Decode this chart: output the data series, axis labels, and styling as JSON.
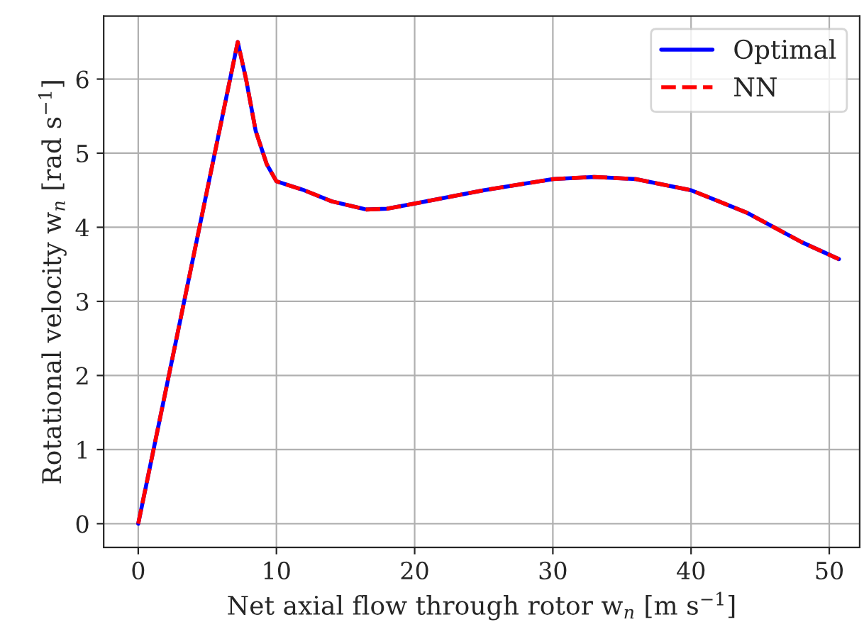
{
  "chart_data": {
    "type": "line",
    "xlabel": "Net axial flow through rotor w$_{n}$ [m s$^{−1}$]",
    "ylabel": "Rotational velocity w$_{n}$ [rad s$^{−1}$]",
    "x": [
      0,
      7.2,
      7.8,
      8.5,
      9.3,
      10,
      12,
      14,
      16.5,
      18,
      20,
      25,
      30,
      33,
      36,
      40,
      44,
      48,
      50.7
    ],
    "series": [
      {
        "name": "Optimal",
        "color": "#0000ff",
        "line_style": "solid",
        "values": [
          0,
          6.5,
          6.0,
          5.3,
          4.85,
          4.62,
          4.5,
          4.35,
          4.24,
          4.25,
          4.32,
          4.5,
          4.65,
          4.68,
          4.65,
          4.5,
          4.2,
          3.8,
          3.57
        ]
      },
      {
        "name": "NN",
        "color": "#ff0000",
        "line_style": "dashed",
        "values": [
          0,
          6.5,
          6.0,
          5.3,
          4.85,
          4.62,
          4.5,
          4.35,
          4.24,
          4.25,
          4.32,
          4.5,
          4.65,
          4.68,
          4.65,
          4.5,
          4.2,
          3.8,
          3.57
        ]
      }
    ],
    "xlim": [
      -2.5,
      52.2
    ],
    "ylim": [
      -0.32,
      6.85
    ],
    "xticks": [
      0,
      10,
      20,
      30,
      40,
      50
    ],
    "yticks": [
      0,
      1,
      2,
      3,
      4,
      5,
      6
    ],
    "grid": true,
    "legend": "top right",
    "marker": "none"
  }
}
